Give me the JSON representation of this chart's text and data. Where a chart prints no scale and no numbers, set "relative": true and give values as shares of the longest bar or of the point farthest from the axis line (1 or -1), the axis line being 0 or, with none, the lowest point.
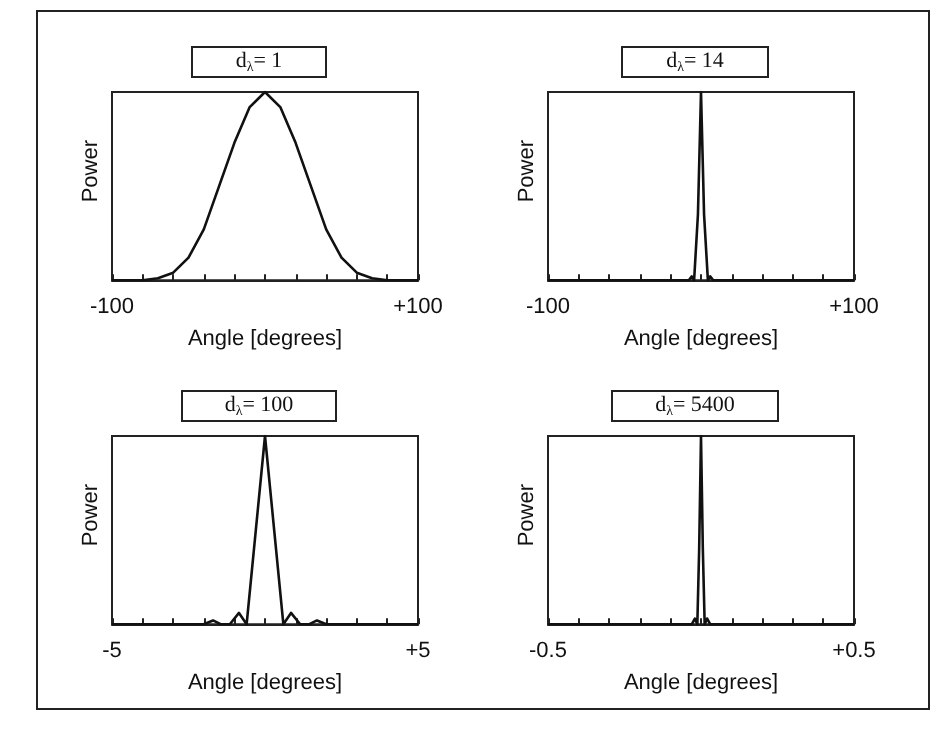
{
  "chart_data": [
    {
      "type": "line",
      "title": "d$_{λ}$= 1",
      "xlabel": "Angle [degrees]",
      "ylabel": "Power",
      "relative": true,
      "color": "#111111",
      "tick_labels": "x",
      "xlim": [
        -100,
        100
      ],
      "xticks": [
        -100,
        {
          "value": -80,
          "label": null
        },
        {
          "value": -60,
          "label": null
        },
        {
          "value": -40,
          "label": null
        },
        {
          "value": -20,
          "label": null
        },
        {
          "value": 0,
          "label": null
        },
        {
          "value": 20,
          "label": null
        },
        {
          "value": 40,
          "label": null
        },
        {
          "value": 60,
          "label": null
        },
        {
          "value": 80,
          "label": null
        },
        {
          "value": 100,
          "label": "+100"
        }
      ],
      "x": [
        -100,
        -80,
        -70,
        -60,
        -50,
        -40,
        -30,
        -20,
        -10,
        0,
        10,
        20,
        30,
        40,
        50,
        60,
        70,
        80,
        100
      ],
      "values": [
        0,
        0,
        0.01,
        0.04,
        0.12,
        0.27,
        0.5,
        0.73,
        0.92,
        1,
        0.92,
        0.73,
        0.5,
        0.27,
        0.12,
        0.04,
        0.01,
        0,
        0
      ]
    },
    {
      "type": "line",
      "title": "d$_{λ}$= 14",
      "xlabel": "Angle [degrees]",
      "ylabel": "Power",
      "relative": true,
      "color": "#111111",
      "tick_labels": "x",
      "xlim": [
        -100,
        100
      ],
      "xticks": [
        -100,
        {
          "value": -80,
          "label": null
        },
        {
          "value": -60,
          "label": null
        },
        {
          "value": -40,
          "label": null
        },
        {
          "value": -20,
          "label": null
        },
        {
          "value": 0,
          "label": null
        },
        {
          "value": 20,
          "label": null
        },
        {
          "value": 40,
          "label": null
        },
        {
          "value": 60,
          "label": null
        },
        {
          "value": 80,
          "label": null
        },
        {
          "value": 100,
          "label": "+100"
        }
      ],
      "x": [
        -100,
        -8,
        -6,
        -4.5,
        -2,
        0,
        2,
        4.5,
        6,
        8,
        100
      ],
      "values": [
        0,
        0,
        0.02,
        0,
        0.35,
        1,
        0.35,
        0,
        0.02,
        0,
        0
      ]
    },
    {
      "type": "line",
      "title": "d$_{λ}$= 100",
      "xlabel": "Angle [degrees]",
      "ylabel": "Power",
      "relative": true,
      "color": "#111111",
      "tick_labels": "x",
      "xlim": [
        -5,
        5
      ],
      "xticks": [
        -5,
        {
          "value": -4,
          "label": null
        },
        {
          "value": -3,
          "label": null
        },
        {
          "value": -2,
          "label": null
        },
        {
          "value": -1,
          "label": null
        },
        {
          "value": 0,
          "label": null
        },
        {
          "value": 1,
          "label": null
        },
        {
          "value": 2,
          "label": null
        },
        {
          "value": 3,
          "label": null
        },
        {
          "value": 4,
          "label": null
        },
        {
          "value": 5,
          "label": "+5"
        }
      ],
      "x": [
        -5,
        -2,
        -1.7,
        -1.45,
        -1.15,
        -0.85,
        -0.6,
        -0.3,
        0,
        0.3,
        0.6,
        0.85,
        1.15,
        1.45,
        1.7,
        2,
        5
      ],
      "values": [
        0,
        0,
        0.02,
        0,
        0,
        0.06,
        0,
        0.5,
        1,
        0.5,
        0,
        0.06,
        0,
        0,
        0.02,
        0,
        0
      ]
    },
    {
      "type": "line",
      "title": "d$_{λ}$= 5400",
      "xlabel": "Angle [degrees]",
      "ylabel": "Power",
      "relative": true,
      "color": "#111111",
      "tick_labels": "x",
      "xlim": [
        -0.5,
        0.5
      ],
      "xticks": [
        -0.5,
        {
          "value": -0.4,
          "label": null
        },
        {
          "value": -0.3,
          "label": null
        },
        {
          "value": -0.2,
          "label": null
        },
        {
          "value": -0.1,
          "label": null
        },
        {
          "value": 0,
          "label": null
        },
        {
          "value": 0.1,
          "label": null
        },
        {
          "value": 0.2,
          "label": null
        },
        {
          "value": 0.3,
          "label": null
        },
        {
          "value": 0.4,
          "label": null
        },
        {
          "value": 0.5,
          "label": "+0.5"
        }
      ],
      "x": [
        -0.5,
        -0.03,
        -0.02,
        -0.012,
        -0.006,
        0,
        0.006,
        0.012,
        0.02,
        0.03,
        0.5
      ],
      "values": [
        0,
        0,
        0.03,
        0,
        0.4,
        1,
        0.4,
        0,
        0.03,
        0,
        0
      ]
    }
  ]
}
